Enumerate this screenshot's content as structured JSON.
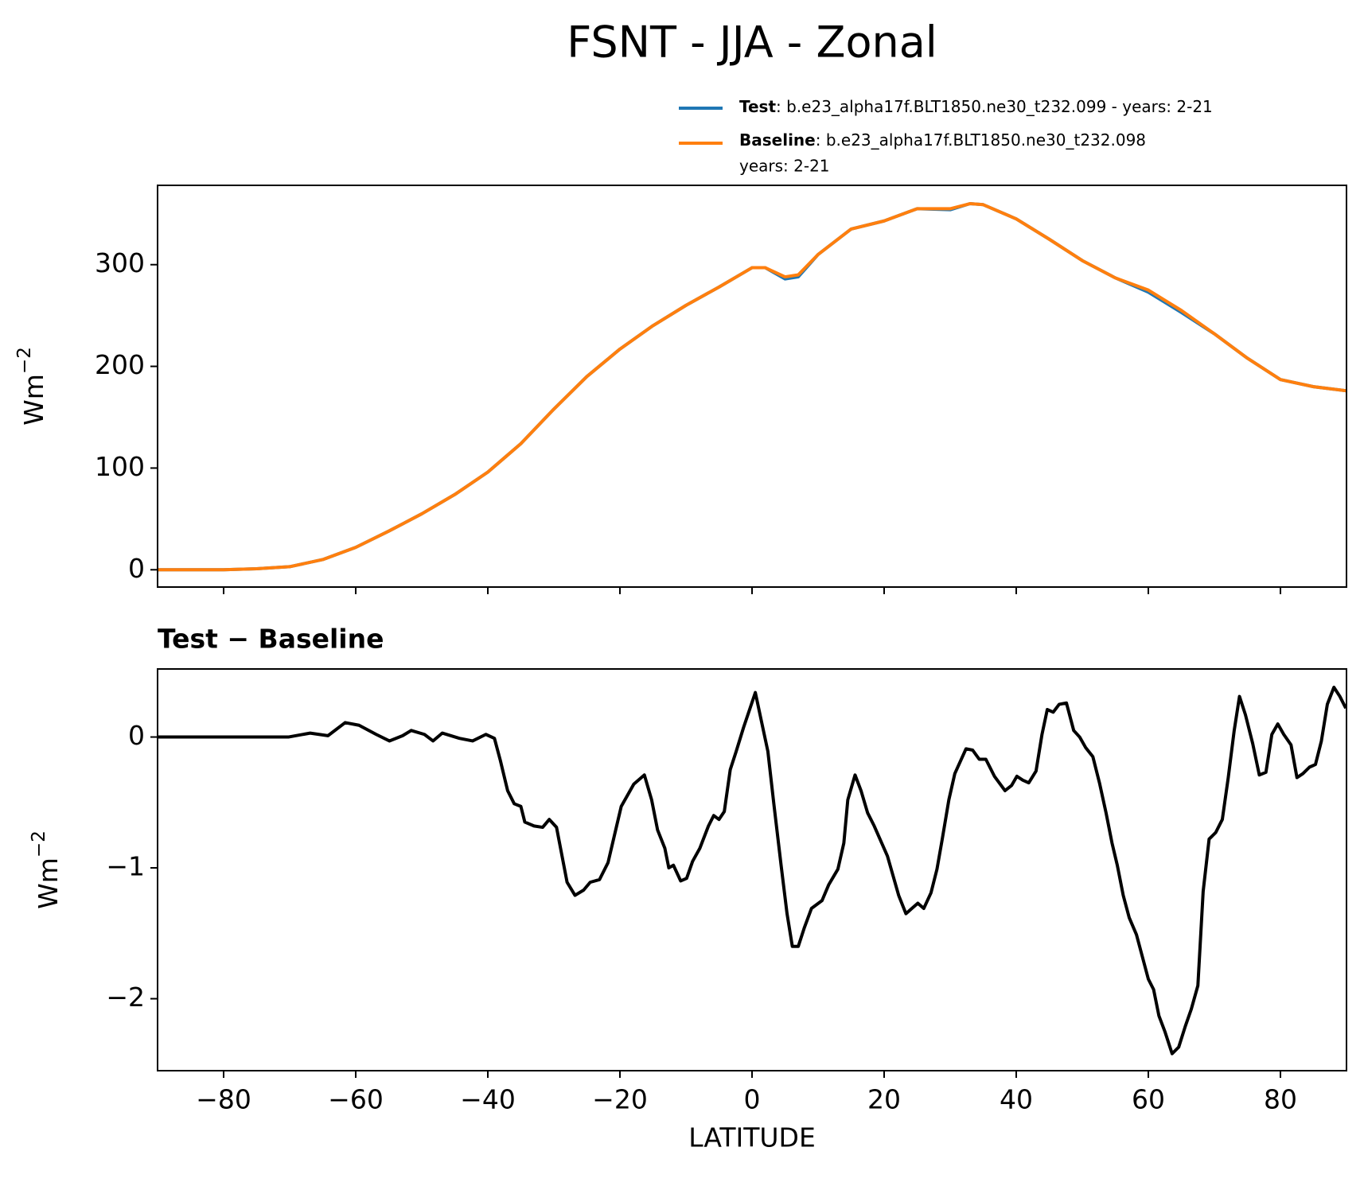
{
  "title": "FSNT - JJA - Zonal",
  "chart_data": [
    {
      "type": "line",
      "ylabel": [
        "Wm",
        "−2"
      ],
      "xlim": [
        -90,
        90
      ],
      "ylim": [
        -17,
        378
      ],
      "xticks": [
        -80,
        -60,
        -40,
        -20,
        0,
        20,
        40,
        60,
        80
      ],
      "yticks": [
        0,
        100,
        200,
        300
      ],
      "x": [
        -90,
        -85,
        -80,
        -75,
        -70,
        -65,
        -60,
        -55,
        -50,
        -45,
        -40,
        -35,
        -30,
        -25,
        -20,
        -15,
        -10,
        -5,
        0,
        2,
        5,
        7,
        10,
        15,
        20,
        25,
        30,
        33,
        35,
        40,
        45,
        50,
        55,
        60,
        65,
        70,
        75,
        80,
        85,
        90
      ],
      "series": [
        {
          "name": "Test",
          "label": [
            ": b.e23_alpha17f.BLT1850.ne30_t232.099 - years: 2-21"
          ],
          "color": "#1f77b4",
          "values": [
            0,
            0,
            0,
            1,
            3,
            10,
            22,
            38,
            55,
            74,
            96,
            124,
            158,
            190,
            217,
            240,
            260,
            278,
            297,
            297,
            286,
            288,
            310,
            335,
            343,
            355,
            354,
            360,
            359,
            345,
            325,
            304,
            287,
            273,
            253,
            232,
            208,
            187,
            180,
            176
          ]
        },
        {
          "name": "Baseline",
          "label": [
            ": b.e23_alpha17f.BLT1850.ne30_t232.098",
            "years: 2-21"
          ],
          "color": "#ff7f0e",
          "values": [
            0,
            0,
            0,
            1,
            3,
            10,
            22,
            38,
            55,
            74,
            96,
            124,
            158,
            190,
            217,
            240,
            260,
            278,
            297,
            297,
            288,
            290,
            310,
            335,
            343,
            355,
            355,
            360,
            359,
            345,
            325,
            304,
            287,
            275,
            255,
            232,
            208,
            187,
            180,
            176
          ]
        }
      ]
    },
    {
      "type": "line",
      "title": "Test − Baseline",
      "ylabel": [
        "Wm",
        "−2"
      ],
      "xlabel": "LATITUDE",
      "xlim": [
        -90,
        90
      ],
      "ylim": [
        -2.55,
        0.52
      ],
      "xticks": [
        {
          "value": -80,
          "label": "−80"
        },
        {
          "value": -60,
          "label": "−60"
        },
        {
          "value": -40,
          "label": "−40"
        },
        {
          "value": -20,
          "label": "−20"
        },
        0,
        20,
        40,
        60,
        80
      ],
      "yticks": [
        {
          "value": -2,
          "label": "−2"
        },
        {
          "value": -1,
          "label": "−1"
        },
        0
      ],
      "x": [
        -90,
        -70.2,
        -66.9,
        -64.2,
        -61.6,
        -59.5,
        -56.9,
        -54.9,
        -52.9,
        -51.6,
        -49.6,
        -48.3,
        -46.9,
        -44.3,
        -42.3,
        -40.3,
        -39,
        -38.1,
        -37,
        -36,
        -35,
        -34.4,
        -33,
        -31.7,
        -30.7,
        -29.6,
        -28,
        -26.8,
        -25.5,
        -24.5,
        -23.1,
        -21.8,
        -20.5,
        -19.8,
        -17.9,
        -16.3,
        -15.2,
        -14.3,
        -13.2,
        -12.6,
        -11.9,
        -10.8,
        -9.9,
        -9,
        -7.9,
        -6.6,
        -5.8,
        -5,
        -4.2,
        -3.3,
        -2.4,
        -1.3,
        -0.3,
        0.5,
        1.3,
        2.4,
        3.3,
        4.4,
        5.3,
        6.1,
        7,
        7.9,
        9,
        10.6,
        11.6,
        13,
        13.9,
        14.5,
        15.6,
        16.5,
        17.5,
        18.5,
        20.5,
        22.2,
        23.3,
        24.2,
        25.1,
        26,
        27.1,
        28,
        28.8,
        29.8,
        30.7,
        32.4,
        33.4,
        34.4,
        35.4,
        36.7,
        38.3,
        39.3,
        40.1,
        41,
        41.9,
        43,
        43.9,
        44.7,
        45.6,
        46.5,
        47.6,
        48.7,
        49.6,
        50.5,
        51.6,
        52.6,
        53.6,
        54.5,
        55.3,
        56.2,
        57.1,
        58.2,
        59.1,
        60,
        60.8,
        61.6,
        62.5,
        63.6,
        64.6,
        65.6,
        66.5,
        67.5,
        68.3,
        69.2,
        70.2,
        71.2,
        72.1,
        73,
        73.8,
        74.7,
        75.8,
        76.8,
        77.8,
        78.7,
        79.6,
        80.5,
        81.6,
        82.5,
        83.4,
        84.4,
        85.3,
        86.2,
        87.1,
        88.1,
        89,
        89.9
      ],
      "series": [
        {
          "color": "#000000",
          "values": [
            0,
            0,
            0.03,
            0.01,
            0.11,
            0.09,
            0.02,
            -0.03,
            0.01,
            0.05,
            0.02,
            -0.03,
            0.03,
            -0.01,
            -0.03,
            0.02,
            -0.01,
            -0.18,
            -0.41,
            -0.51,
            -0.53,
            -0.65,
            -0.68,
            -0.69,
            -0.63,
            -0.69,
            -1.11,
            -1.21,
            -1.17,
            -1.11,
            -1.09,
            -0.96,
            -0.68,
            -0.53,
            -0.36,
            -0.29,
            -0.48,
            -0.71,
            -0.85,
            -1.0,
            -0.98,
            -1.1,
            -1.08,
            -0.95,
            -0.85,
            -0.68,
            -0.6,
            -0.63,
            -0.57,
            -0.25,
            -0.11,
            0.07,
            0.22,
            0.34,
            0.15,
            -0.11,
            -0.51,
            -0.98,
            -1.35,
            -1.6,
            -1.6,
            -1.46,
            -1.31,
            -1.25,
            -1.13,
            -1.01,
            -0.81,
            -0.48,
            -0.29,
            -0.41,
            -0.58,
            -0.68,
            -0.91,
            -1.21,
            -1.35,
            -1.31,
            -1.27,
            -1.31,
            -1.19,
            -1.01,
            -0.78,
            -0.48,
            -0.28,
            -0.09,
            -0.1,
            -0.17,
            -0.17,
            -0.3,
            -0.41,
            -0.37,
            -0.3,
            -0.33,
            -0.35,
            -0.26,
            0.02,
            0.21,
            0.19,
            0.25,
            0.26,
            0.05,
            0,
            -0.08,
            -0.15,
            -0.35,
            -0.58,
            -0.81,
            -0.98,
            -1.21,
            -1.38,
            -1.51,
            -1.68,
            -1.85,
            -1.93,
            -2.13,
            -2.25,
            -2.42,
            -2.37,
            -2.21,
            -2.08,
            -1.9,
            -1.18,
            -0.78,
            -0.73,
            -0.63,
            -0.31,
            0.05,
            0.31,
            0.17,
            -0.05,
            -0.29,
            -0.27,
            0.02,
            0.1,
            0.02,
            -0.06,
            -0.31,
            -0.28,
            -0.23,
            -0.21,
            -0.03,
            0.25,
            0.38,
            0.31,
            0.22
          ]
        }
      ]
    }
  ]
}
